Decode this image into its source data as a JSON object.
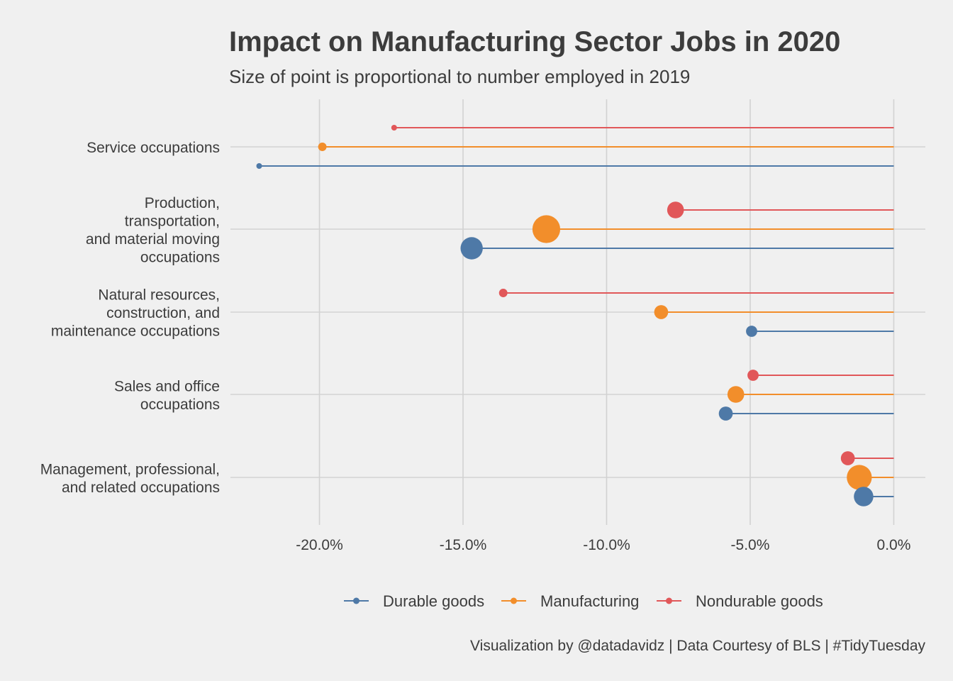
{
  "title": "Impact on Manufacturing Sector Jobs in 2020",
  "subtitle": "Size of point is proportional to number employed in 2019",
  "caption": "Visualization by @datadavidz | Data Courtesy of BLS | #TidyTuesday",
  "colors": {
    "background": "#f0f0f0",
    "grid": "#d2d2d2",
    "text": "#3c3c3c",
    "Durable goods": "#4e79a7",
    "Manufacturing": "#f28e2b",
    "Nondurable goods": "#e15759"
  },
  "chart_data": {
    "type": "lollipop",
    "categories": [
      "Service occupations",
      "Production,\ntransportation,\nand material moving\noccupations",
      "Natural resources,\nconstruction, and\nmaintenance occupations",
      "Sales and office\noccupations",
      "Management, professional,\nand related occupations"
    ],
    "series": [
      {
        "name": "Nondurable goods",
        "values": [
          -17.4,
          -7.6,
          -13.6,
          -4.9,
          -1.6
        ],
        "size": [
          1,
          5,
          2,
          3,
          4
        ]
      },
      {
        "name": "Manufacturing",
        "values": [
          -19.9,
          -12.1,
          -8.1,
          -5.5,
          -1.2
        ],
        "size": [
          2,
          9,
          4,
          5,
          8
        ]
      },
      {
        "name": "Durable goods",
        "values": [
          -22.1,
          -14.7,
          -4.95,
          -5.85,
          -1.05
        ],
        "size": [
          1,
          7,
          3,
          4,
          6
        ]
      }
    ],
    "x_ticks": [
      -20,
      -15,
      -10,
      -5,
      0
    ],
    "x_tick_labels": [
      "-20.0%",
      "-15.0%",
      "-10.0%",
      "-5.0%",
      "0.0%"
    ],
    "xlim": [
      -23.1,
      1.1
    ],
    "xlabel": "",
    "ylabel": "",
    "grid": true,
    "legend_position": "bottom",
    "legend": [
      "Durable goods",
      "Manufacturing",
      "Nondurable goods"
    ]
  }
}
